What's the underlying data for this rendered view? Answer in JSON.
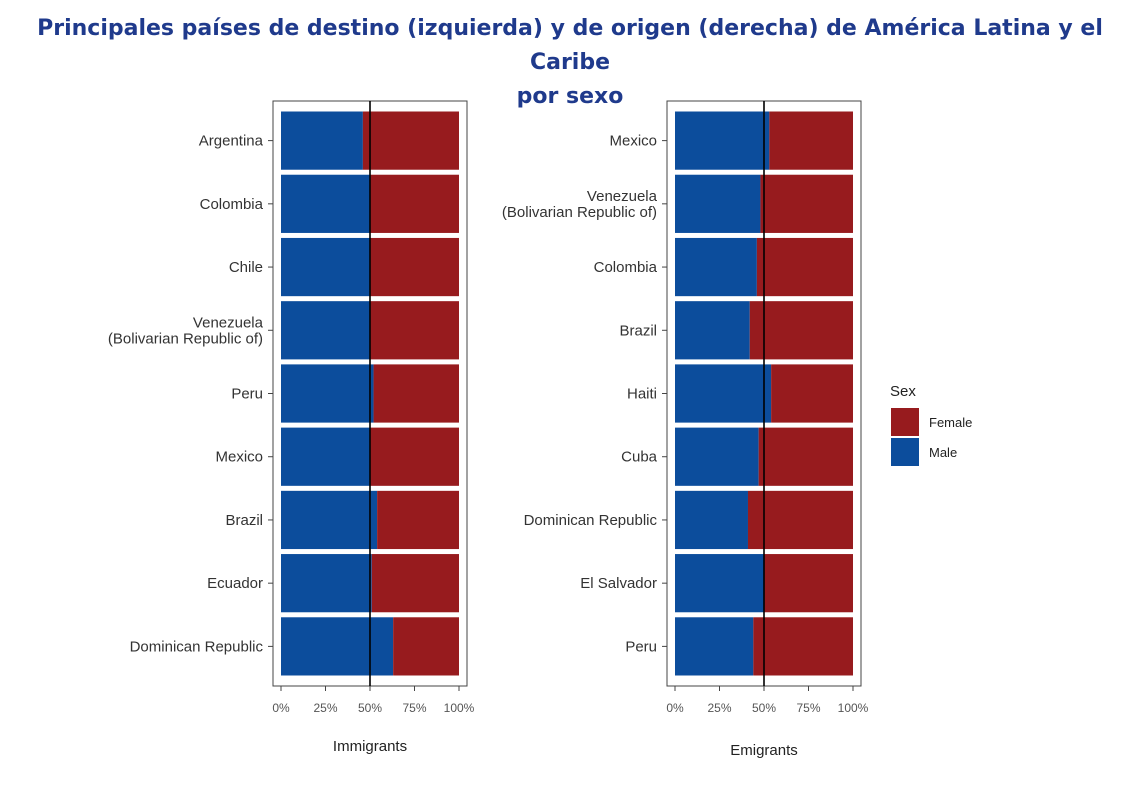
{
  "title_line1": "Principales países de destino (izquierda) y de origen (derecha) de América Latina y el Caribe",
  "title_line2": "por sexo",
  "colors": {
    "female": "#971b1e",
    "male": "#0c4d9c",
    "title": "#1f3a8c"
  },
  "chart_data": [
    {
      "type": "bar",
      "orientation": "horizontal-stacked-percent",
      "xlabel": "Immigrants",
      "xlim": [
        0,
        100
      ],
      "xticks": [
        "0%",
        "25%",
        "50%",
        "75%",
        "100%"
      ],
      "reference_line": 50,
      "categories": [
        "Argentina",
        "Colombia",
        "Chile",
        "Venezuela\n(Bolivarian Republic of)",
        "Peru",
        "Mexico",
        "Brazil",
        "Ecuador",
        "Dominican Republic"
      ],
      "series": [
        {
          "name": "Male",
          "values": [
            46,
            50,
            50,
            50,
            52,
            50,
            54,
            51,
            63
          ]
        },
        {
          "name": "Female",
          "values": [
            54,
            50,
            50,
            50,
            48,
            50,
            46,
            49,
            37
          ]
        }
      ]
    },
    {
      "type": "bar",
      "orientation": "horizontal-stacked-percent",
      "xlabel": "Emigrants",
      "xlim": [
        0,
        100
      ],
      "xticks": [
        "0%",
        "25%",
        "50%",
        "75%",
        "100%"
      ],
      "reference_line": 50,
      "categories": [
        "Mexico",
        "Venezuela\n(Bolivarian Republic of)",
        "Colombia",
        "Brazil",
        "Haiti",
        "Cuba",
        "Dominican Republic",
        "El Salvador",
        "Peru"
      ],
      "series": [
        {
          "name": "Male",
          "values": [
            53,
            48,
            46,
            42,
            54,
            47,
            41,
            50,
            44
          ]
        },
        {
          "name": "Female",
          "values": [
            47,
            52,
            54,
            58,
            46,
            53,
            59,
            50,
            56
          ]
        }
      ]
    }
  ],
  "legend": {
    "title": "Sex",
    "items": [
      {
        "label": "Female",
        "key": "female"
      },
      {
        "label": "Male",
        "key": "male"
      }
    ]
  }
}
